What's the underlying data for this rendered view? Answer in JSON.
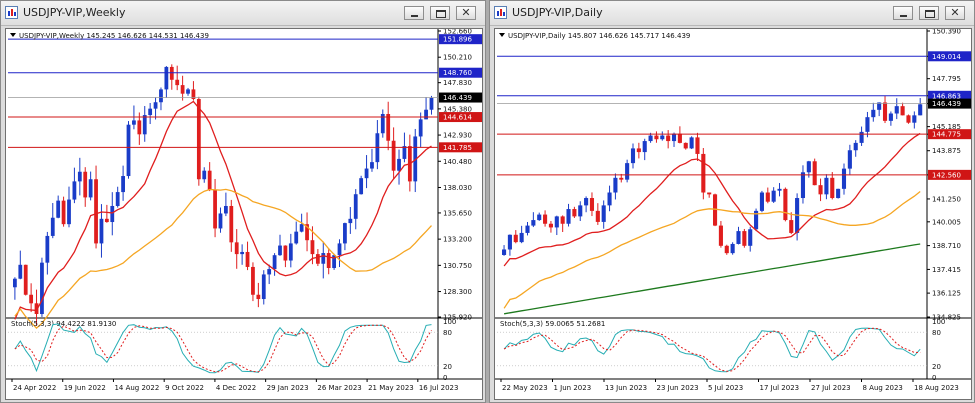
{
  "windows": [
    {
      "id": "weekly",
      "title": "USDJPY-VIP,Weekly",
      "info": "USDJPY-VIP,Weekly  145.245 146.626 144.531 146.439",
      "price_axis": [
        "152.660",
        "150.210",
        "147.830",
        "145.380",
        "142.930",
        "140.480",
        "138.030",
        "135.650",
        "133.200",
        "130.750",
        "128.300",
        "125.920"
      ],
      "price_range": [
        125.92,
        152.66
      ],
      "hlines": [
        {
          "value": 151.896,
          "label": "151.896",
          "color": "#1f24c8"
        },
        {
          "value": 148.76,
          "label": "148.760",
          "color": "#1f24c8"
        },
        {
          "value": 144.614,
          "label": "144.614",
          "color": "#d01515"
        },
        {
          "value": 141.785,
          "label": "141.785",
          "color": "#d01515"
        }
      ],
      "current_price": {
        "value": 146.439,
        "label": "146.439"
      },
      "stoch": {
        "label": "Stoch(5,3,3) 94.4222 81.9130",
        "levels": [
          "100",
          "80",
          "20",
          "0"
        ]
      },
      "time_axis": [
        "24 Apr 2022",
        "19 Jun 2022",
        "14 Aug 2022",
        "9 Oct 2022",
        "4 Dec 2022",
        "29 Jan 2023",
        "26 Mar 2023",
        "21 May 2023",
        "16 Jul 2023"
      ]
    },
    {
      "id": "daily",
      "title": "USDJPY-VIP,Daily",
      "info": "USDJPY-VIP,Daily  145.807 146.626 145.717 146.439",
      "price_axis": [
        "150.390",
        "149.014",
        "147.795",
        "146.863",
        "146.439",
        "145.185",
        "144.775",
        "143.875",
        "142.560",
        "141.250",
        "140.005",
        "138.710",
        "137.415",
        "136.125",
        "134.825"
      ],
      "price_range": [
        134.825,
        150.39
      ],
      "hlines": [
        {
          "value": 149.014,
          "label": "149.014",
          "color": "#1f24c8"
        },
        {
          "value": 146.863,
          "label": "146.863",
          "color": "#1f24c8"
        },
        {
          "value": 144.775,
          "label": "144.775",
          "color": "#d01515"
        },
        {
          "value": 142.56,
          "label": "142.560",
          "color": "#d01515"
        }
      ],
      "current_price": {
        "value": 146.439,
        "label": "146.439"
      },
      "stoch": {
        "label": "Stoch(5,3,3) 59.0065 51.2681",
        "levels": [
          "100",
          "80",
          "20",
          "0"
        ]
      },
      "time_axis": [
        "22 May 2023",
        "1 Jun 2023",
        "13 Jun 2023",
        "23 Jun 2023",
        "5 Jul 2023",
        "17 Jul 2023",
        "27 Jul 2023",
        "8 Aug 2023",
        "18 Aug 2023"
      ]
    }
  ],
  "colors": {
    "bull": "#1a3cc8",
    "bear": "#e01e1e",
    "ma_fast": "#e01e1e",
    "ma_mid": "#f5a623",
    "ma_slow": "#1e7a1e",
    "stoch_main": "#27aeb4",
    "stoch_signal": "#e01e1e"
  }
}
